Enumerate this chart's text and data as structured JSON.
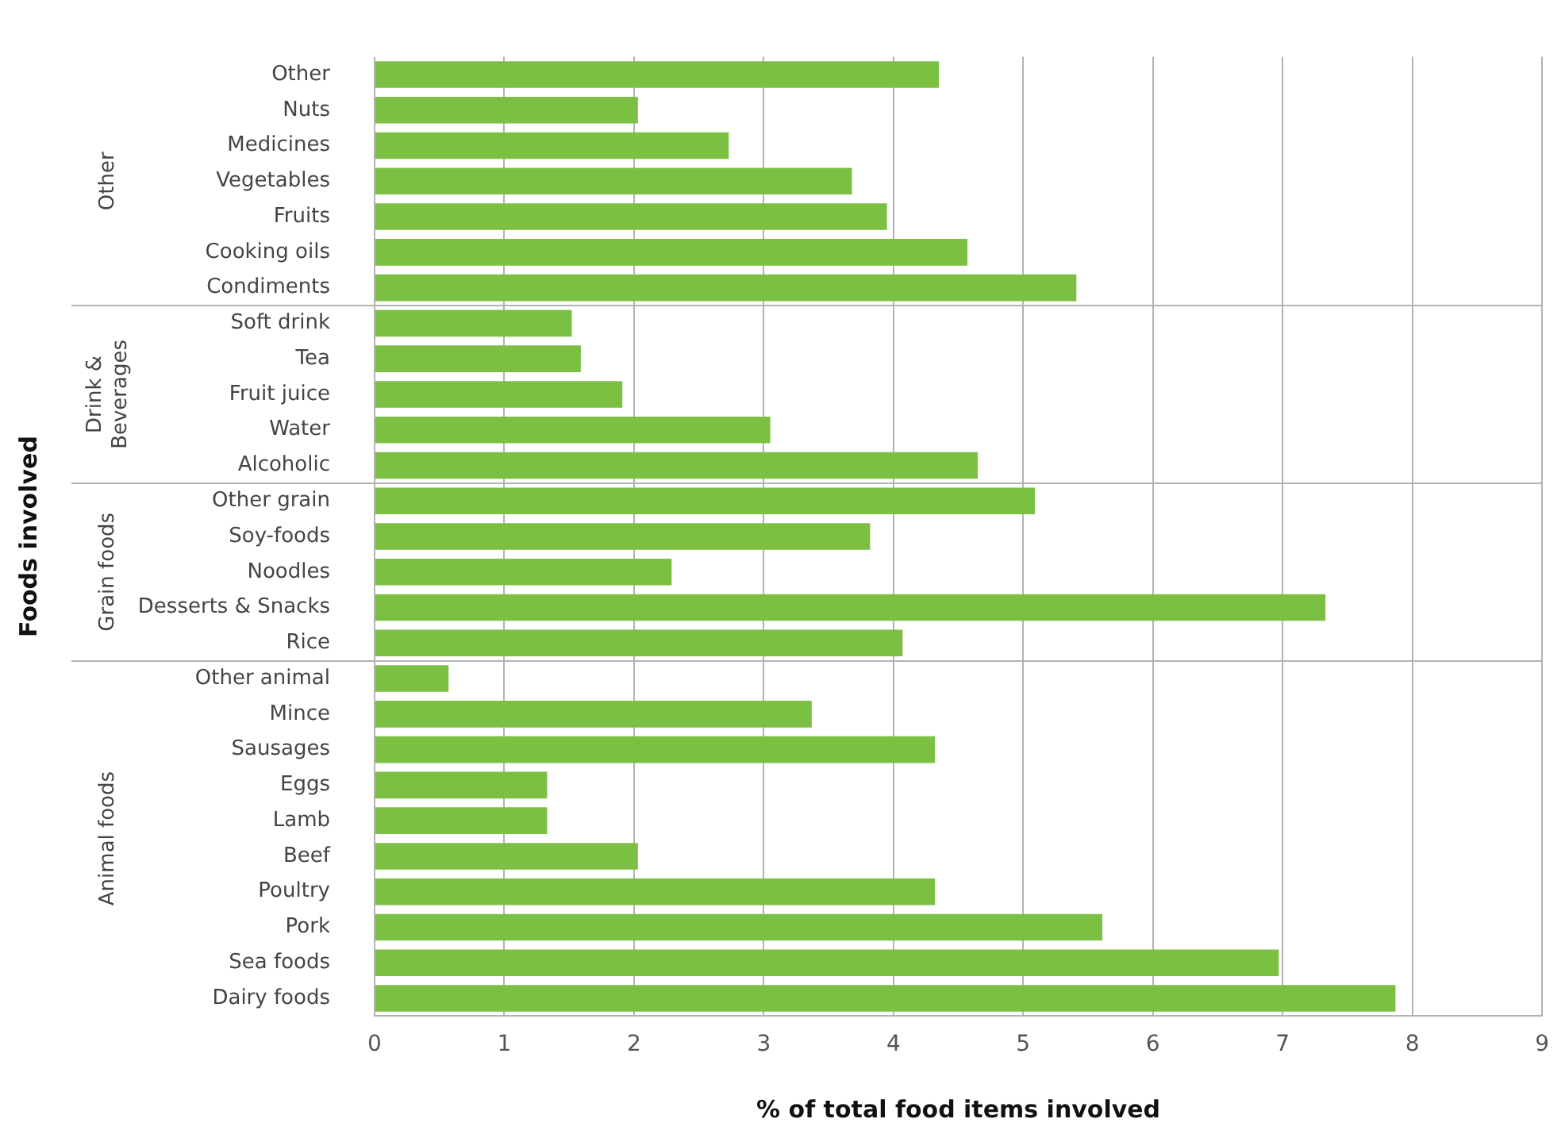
{
  "chart_data": {
    "type": "bar",
    "orientation": "horizontal",
    "xlabel": "% of total food items involved",
    "ylabel": "Foods involved",
    "categories": [
      "Other",
      "Nuts",
      "Medicines",
      "Vegetables",
      "Fruits",
      "Cooking oils",
      "Condiments",
      "Soft drink",
      "Tea",
      "Fruit juice",
      "Water",
      "Alcoholic",
      "Other grain",
      "Soy-foods",
      "Noodles",
      "Desserts & Snacks",
      "Rice",
      "Other animal",
      "Mince",
      "Sausages",
      "Eggs",
      "Lamb",
      "Beef",
      "Poultry",
      "Pork",
      "Sea foods",
      "Dairy foods"
    ],
    "values": [
      4.35,
      2.03,
      2.73,
      3.68,
      3.95,
      4.57,
      5.41,
      1.52,
      1.59,
      1.91,
      3.05,
      4.65,
      5.09,
      3.82,
      2.29,
      7.33,
      4.07,
      0.57,
      3.37,
      4.32,
      1.33,
      1.33,
      2.03,
      4.32,
      5.61,
      6.97,
      7.87
    ],
    "color": "#7bc043",
    "xlim": [
      0,
      9
    ],
    "xticks": [
      0,
      1,
      2,
      3,
      4,
      5,
      6,
      7,
      8,
      9
    ],
    "grid": "x",
    "legend": false,
    "annotations": [
      "Other",
      "Drink & Beverages",
      "Grain foods",
      "Animal foods"
    ]
  }
}
